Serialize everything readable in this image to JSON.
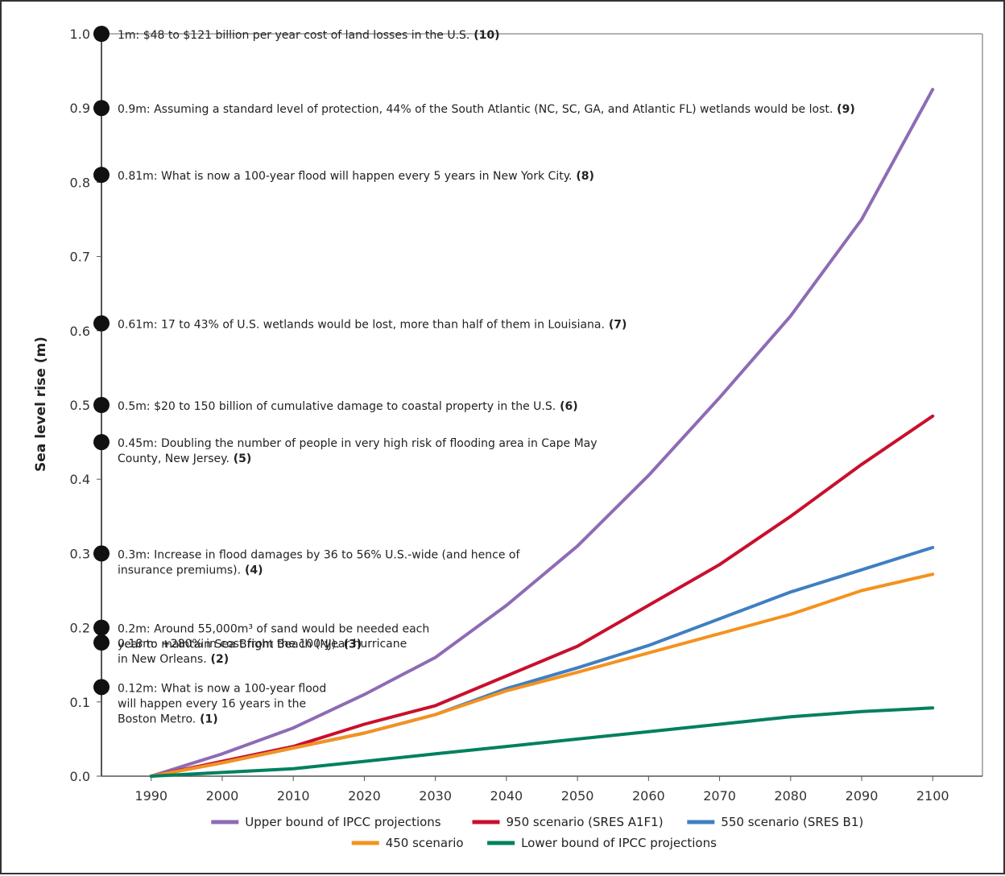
{
  "chart_data": {
    "type": "line",
    "ylabel": "Sea level rise (m)",
    "xlabel": "",
    "ylim": [
      0,
      1.0
    ],
    "xlim": [
      1983,
      2107
    ],
    "x": [
      1990,
      2000,
      2010,
      2020,
      2030,
      2040,
      2050,
      2060,
      2070,
      2080,
      2090,
      2100
    ],
    "x_ticks": [
      1990,
      2000,
      2010,
      2020,
      2030,
      2040,
      2050,
      2060,
      2070,
      2080,
      2090,
      2100
    ],
    "y_ticks": [
      0.0,
      0.1,
      0.2,
      0.3,
      0.4,
      0.5,
      0.6,
      0.7,
      0.8,
      0.9,
      1.0
    ],
    "y_tick_labels": [
      "0.0",
      "0.1",
      "0.2",
      "0.3",
      "0.4",
      "0.5",
      "0.6",
      "0.7",
      "0.8",
      "0.9",
      "1.0"
    ],
    "grid": false,
    "legend_position": "bottom",
    "series": [
      {
        "name": "Upper bound of IPCC projections",
        "color": "#8e6bb5",
        "values": [
          0.0,
          0.03,
          0.065,
          0.11,
          0.16,
          0.23,
          0.31,
          0.405,
          0.51,
          0.62,
          0.75,
          0.925
        ]
      },
      {
        "name": "950 scenario (SRES A1F1)",
        "color": "#c8102e",
        "values": [
          0.0,
          0.02,
          0.04,
          0.07,
          0.095,
          0.135,
          0.175,
          0.23,
          0.285,
          0.35,
          0.42,
          0.485
        ]
      },
      {
        "name": "550 scenario (SRES B1)",
        "color": "#3f7fc2",
        "values": [
          0.0,
          0.018,
          0.038,
          0.058,
          0.083,
          0.118,
          0.146,
          0.176,
          0.212,
          0.248,
          0.278,
          0.308
        ]
      },
      {
        "name": "450 scenario",
        "color": "#f4921f",
        "values": [
          0.0,
          0.018,
          0.038,
          0.058,
          0.083,
          0.115,
          0.14,
          0.166,
          0.192,
          0.218,
          0.25,
          0.272
        ]
      },
      {
        "name": "Lower bound of IPCC projections",
        "color": "#00805e",
        "values": [
          0.0,
          0.005,
          0.01,
          0.02,
          0.03,
          0.04,
          0.05,
          0.06,
          0.07,
          0.08,
          0.087,
          0.092
        ]
      }
    ],
    "annotations": [
      {
        "y": 1.0,
        "lines": [
          "1m: $48 to $121 billion per year cost of land losses in the U.S."
        ],
        "ref": "(10)"
      },
      {
        "y": 0.9,
        "lines": [
          "0.9m: Assuming a standard level of protection, 44% of the South Atlantic (NC, SC, GA, and Atlantic FL) wetlands would be lost."
        ],
        "ref": "(9)"
      },
      {
        "y": 0.81,
        "lines": [
          "0.81m: What is now a 100-year flood will happen every 5 years in New York City."
        ],
        "ref": "(8)"
      },
      {
        "y": 0.61,
        "lines": [
          "0.61m: 17 to 43% of U.S. wetlands would be lost, more than half of them in Louisiana."
        ],
        "ref": "(7)"
      },
      {
        "y": 0.5,
        "lines": [
          "0.5m: $20 to 150 billion of cumulative damage to coastal property in the U.S."
        ],
        "ref": "(6)"
      },
      {
        "y": 0.45,
        "lines": [
          "0.45m: Doubling the number of people in very high risk of flooding area in Cape May",
          "County, New Jersey."
        ],
        "ref": "(5)"
      },
      {
        "y": 0.3,
        "lines": [
          "0.3m: Increase in flood damages by 36 to 56% U.S.-wide (and hence of",
          "insurance premiums)."
        ],
        "ref": "(4)"
      },
      {
        "y": 0.2,
        "lines": [
          "0.2m: Around 55,000m³ of sand would be needed each",
          "year to maintain Sea Bright Beach (NJ)."
        ],
        "ref": "(3)"
      },
      {
        "y": 0.18,
        "lines": [
          "0.18m: +280% in cost from the 100-year hurricane",
          "in New Orleans."
        ],
        "ref": "(2)"
      },
      {
        "y": 0.12,
        "lines": [
          "0.12m: What is now a 100-year flood",
          "will happen every 16 years in the",
          "Boston Metro."
        ],
        "ref": "(1)"
      }
    ]
  }
}
